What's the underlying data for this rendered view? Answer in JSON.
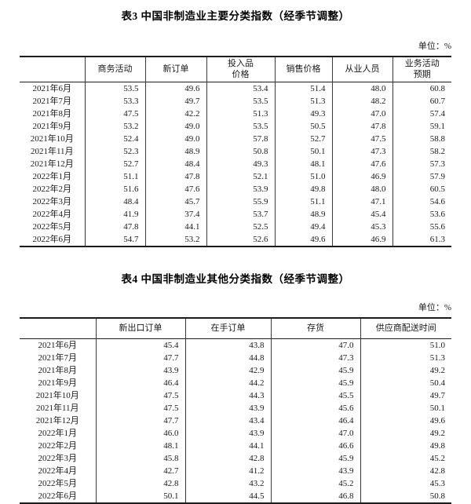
{
  "table3": {
    "title": "表3 中国非制造业主要分类指数（经季节调整）",
    "unit_label": "单位：%",
    "columns": [
      "商务活动",
      "新订单",
      "投入品\n价格",
      "销售价格",
      "从业人员",
      "业务活动\n预期"
    ],
    "rows": [
      {
        "month": "2021年6月",
        "values": [
          "53.5",
          "49.6",
          "53.4",
          "51.4",
          "48.0",
          "60.8"
        ]
      },
      {
        "month": "2021年7月",
        "values": [
          "53.3",
          "49.7",
          "53.5",
          "51.3",
          "48.2",
          "60.7"
        ]
      },
      {
        "month": "2021年8月",
        "values": [
          "47.5",
          "42.2",
          "51.3",
          "49.3",
          "47.0",
          "57.4"
        ]
      },
      {
        "month": "2021年9月",
        "values": [
          "53.2",
          "49.0",
          "53.5",
          "50.5",
          "47.8",
          "59.1"
        ]
      },
      {
        "month": "2021年10月",
        "values": [
          "52.4",
          "49.0",
          "57.8",
          "52.7",
          "47.5",
          "58.8"
        ]
      },
      {
        "month": "2021年11月",
        "values": [
          "52.3",
          "48.9",
          "50.8",
          "50.1",
          "47.3",
          "58.2"
        ]
      },
      {
        "month": "2021年12月",
        "values": [
          "52.7",
          "48.4",
          "49.3",
          "48.1",
          "47.6",
          "57.3"
        ]
      },
      {
        "month": "2022年1月",
        "values": [
          "51.1",
          "47.8",
          "52.1",
          "51.0",
          "46.9",
          "57.9"
        ]
      },
      {
        "month": "2022年2月",
        "values": [
          "51.6",
          "47.6",
          "53.9",
          "49.8",
          "48.0",
          "60.5"
        ]
      },
      {
        "month": "2022年3月",
        "values": [
          "48.4",
          "45.7",
          "55.9",
          "51.1",
          "47.1",
          "54.6"
        ]
      },
      {
        "month": "2022年4月",
        "values": [
          "41.9",
          "37.4",
          "53.7",
          "48.9",
          "45.4",
          "53.6"
        ]
      },
      {
        "month": "2022年5月",
        "values": [
          "47.8",
          "44.1",
          "52.5",
          "49.4",
          "45.3",
          "55.6"
        ]
      },
      {
        "month": "2022年6月",
        "values": [
          "54.7",
          "53.2",
          "52.6",
          "49.6",
          "46.9",
          "61.3"
        ]
      }
    ]
  },
  "table4": {
    "title": "表4 中国非制造业其他分类指数（经季节调整）",
    "unit_label": "单位：%",
    "columns": [
      "新出口订单",
      "在手订单",
      "存货",
      "供应商配送时间"
    ],
    "rows": [
      {
        "month": "2021年6月",
        "values": [
          "45.4",
          "43.8",
          "47.0",
          "51.0"
        ]
      },
      {
        "month": "2021年7月",
        "values": [
          "47.7",
          "44.8",
          "47.3",
          "51.3"
        ]
      },
      {
        "month": "2021年8月",
        "values": [
          "43.9",
          "42.9",
          "45.9",
          "49.2"
        ]
      },
      {
        "month": "2021年9月",
        "values": [
          "46.4",
          "44.2",
          "45.9",
          "50.4"
        ]
      },
      {
        "month": "2021年10月",
        "values": [
          "47.5",
          "44.3",
          "45.5",
          "49.7"
        ]
      },
      {
        "month": "2021年11月",
        "values": [
          "47.5",
          "43.9",
          "45.6",
          "50.1"
        ]
      },
      {
        "month": "2021年12月",
        "values": [
          "47.7",
          "43.4",
          "46.4",
          "49.6"
        ]
      },
      {
        "month": "2022年1月",
        "values": [
          "46.0",
          "43.9",
          "47.0",
          "49.2"
        ]
      },
      {
        "month": "2022年2月",
        "values": [
          "48.1",
          "44.1",
          "46.6",
          "49.8"
        ]
      },
      {
        "month": "2022年3月",
        "values": [
          "45.8",
          "42.8",
          "45.9",
          "45.2"
        ]
      },
      {
        "month": "2022年4月",
        "values": [
          "42.7",
          "41.2",
          "43.9",
          "42.8"
        ]
      },
      {
        "month": "2022年5月",
        "values": [
          "42.8",
          "43.2",
          "45.2",
          "45.3"
        ]
      },
      {
        "month": "2022年6月",
        "values": [
          "50.1",
          "44.5",
          "46.8",
          "50.8"
        ]
      }
    ]
  }
}
